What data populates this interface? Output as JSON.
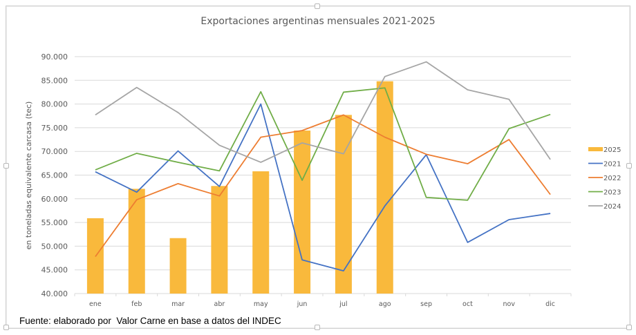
{
  "chart_data": {
    "type": "bar+line",
    "title": "Exportaciones argentinas mensuales 2021-2025",
    "xlabel": "",
    "ylabel": "en toneladas equivalente carcasa (tec)",
    "ylim": [
      40000,
      90000
    ],
    "yticks": [
      40000,
      45000,
      50000,
      55000,
      60000,
      65000,
      70000,
      75000,
      80000,
      85000,
      90000
    ],
    "ytick_labels": [
      "40.000",
      "45.000",
      "50.000",
      "55.000",
      "60.000",
      "65.000",
      "70.000",
      "75.000",
      "80.000",
      "85.000",
      "90.000"
    ],
    "grid": true,
    "legend_position": "right",
    "categories": [
      "ene",
      "feb",
      "mar",
      "abr",
      "may",
      "jun",
      "jul",
      "ago",
      "sep",
      "oct",
      "nov",
      "dic"
    ],
    "series": [
      {
        "name": "2025",
        "kind": "bar",
        "color": "#F9B93C",
        "values": [
          55900,
          62100,
          51700,
          62700,
          65800,
          74400,
          77700,
          84800,
          null,
          null,
          null,
          null
        ]
      },
      {
        "name": "2021",
        "kind": "line",
        "color": "#4472C4",
        "values": [
          65700,
          61400,
          70100,
          62600,
          80000,
          47100,
          44800,
          58500,
          69300,
          50800,
          55600,
          56900
        ]
      },
      {
        "name": "2022",
        "kind": "line",
        "color": "#ED7D31",
        "values": [
          47800,
          59800,
          63200,
          60600,
          73000,
          74400,
          77700,
          73000,
          69400,
          67400,
          72500,
          60900
        ]
      },
      {
        "name": "2023",
        "kind": "line",
        "color": "#70AD47",
        "values": [
          66100,
          69600,
          67700,
          65900,
          82600,
          63900,
          82500,
          83400,
          60300,
          59700,
          74800,
          77800
        ]
      },
      {
        "name": "2024",
        "kind": "line",
        "color": "#A5A5A5",
        "values": [
          77700,
          83500,
          78200,
          71300,
          67700,
          71800,
          69500,
          85800,
          88900,
          83000,
          81000,
          68300
        ]
      }
    ]
  },
  "source_note": "Fuente: elaborado por  Valor Carne en base a datos del INDEC"
}
